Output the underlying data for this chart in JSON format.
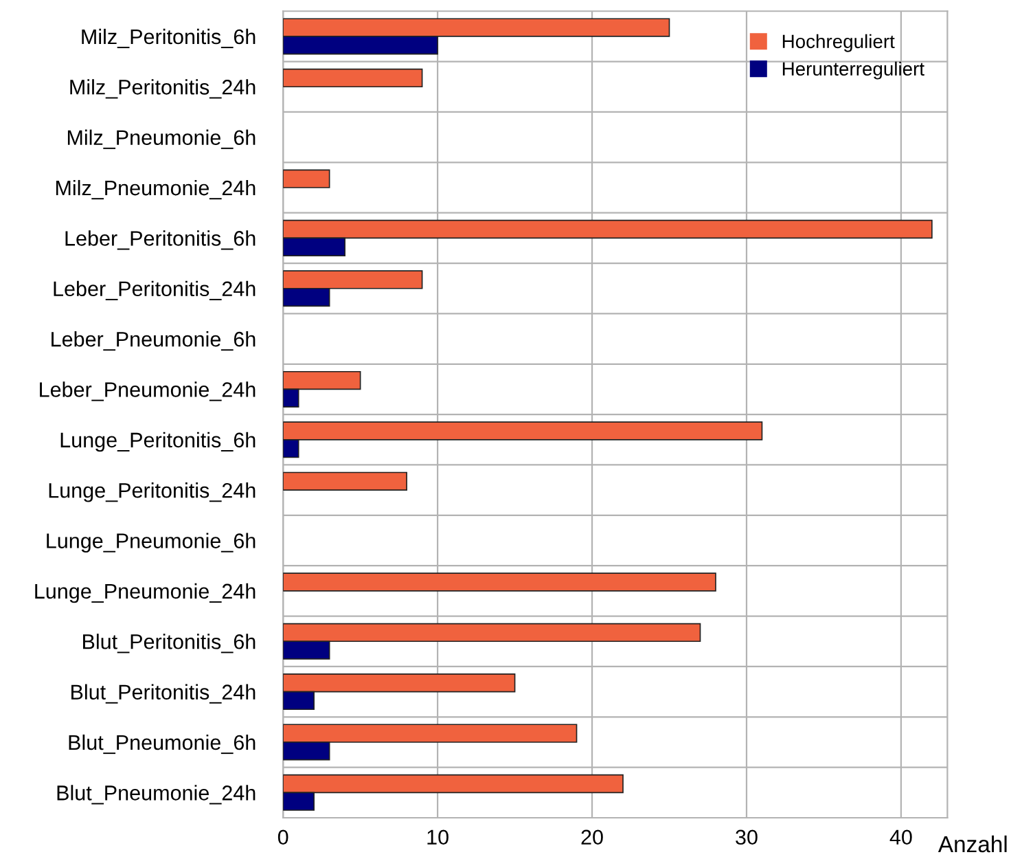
{
  "chart_data": {
    "type": "bar",
    "orientation": "horizontal",
    "xlabel": "Anzahl",
    "categories": [
      "Milz_Peritonitis_6h",
      "Milz_Peritonitis_24h",
      "Milz_Pneumonie_6h",
      "Milz_Pneumonie_24h",
      "Leber_Peritonitis_6h",
      "Leber_Peritonitis_24h",
      "Leber_Pneumonie_6h",
      "Leber_Pneumonie_24h",
      "Lunge_Peritonitis_6h",
      "Lunge_Peritonitis_24h",
      "Lunge_Pneumonie_6h",
      "Lunge_Pneumonie_24h",
      "Blut_Peritonitis_6h",
      "Blut_Peritonitis_24h",
      "Blut_Pneumonie_6h",
      "Blut_Pneumonie_24h"
    ],
    "series": [
      {
        "name": "Hochreguliert",
        "color": "#f0623e",
        "values": [
          25,
          9,
          null,
          3,
          42,
          9,
          null,
          5,
          31,
          8,
          null,
          28,
          27,
          15,
          19,
          22
        ]
      },
      {
        "name": "Herunterreguliert",
        "color": "#000080",
        "values": [
          10,
          null,
          null,
          null,
          4,
          3,
          null,
          1,
          1,
          null,
          null,
          null,
          3,
          2,
          3,
          2
        ]
      }
    ],
    "xlim": [
      0,
      43
    ],
    "xticks": [
      0,
      10,
      20,
      30,
      40
    ],
    "grid": true,
    "legend": "top right"
  }
}
